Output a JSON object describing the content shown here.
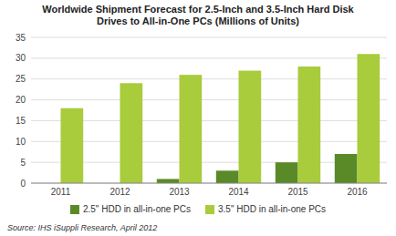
{
  "chart_data": {
    "type": "bar",
    "title": "Worldwide Shipment Forecast for 2.5-Inch and 3.5-Inch Hard Disk\nDrives to All-in-One PCs (Millions of Units)",
    "categories": [
      "2011",
      "2012",
      "2013",
      "2014",
      "2015",
      "2016"
    ],
    "series": [
      {
        "name": "2.5\" HDD in all-in-one PCs",
        "color": "#5a8a28",
        "values": [
          0,
          0,
          1,
          3,
          5,
          7
        ]
      },
      {
        "name": "3.5\" HDD in all-in-one PCs",
        "color": "#a8cc3c",
        "values": [
          18,
          24,
          26,
          27,
          28,
          31
        ]
      }
    ],
    "ylim": [
      0,
      35
    ],
    "yticks": [
      0,
      5,
      10,
      15,
      20,
      25,
      30,
      35
    ],
    "grid": true,
    "legend": "bottom",
    "annotations": [
      "Source: IHS iSuppli Research, April 2012"
    ]
  }
}
